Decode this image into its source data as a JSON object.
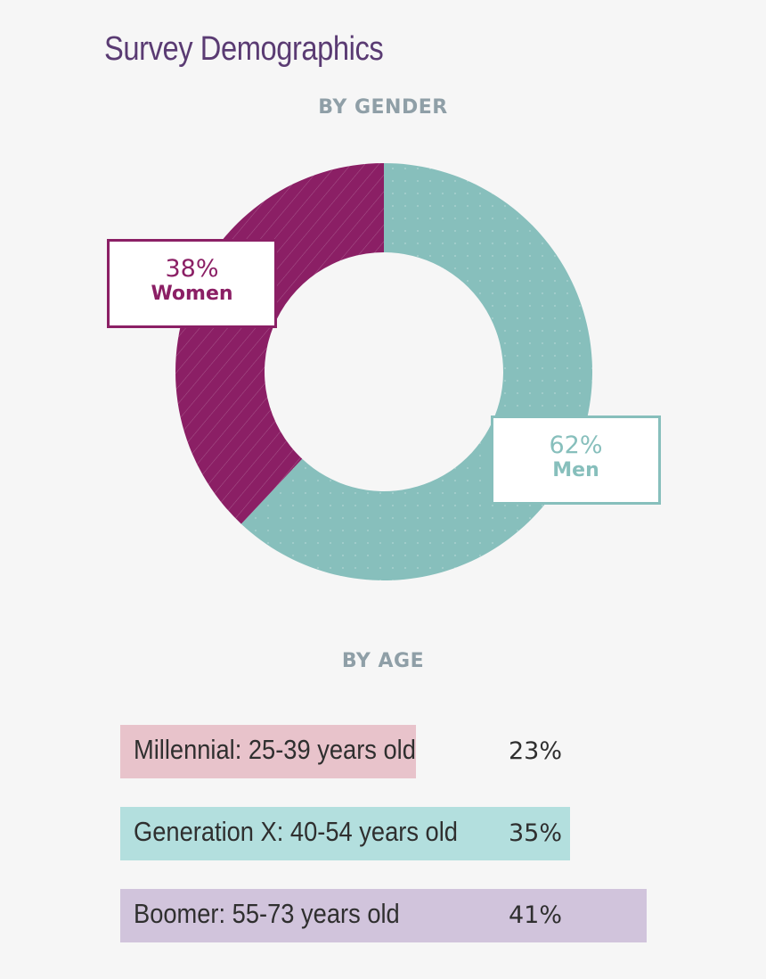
{
  "title": "Survey Demographics",
  "colors": {
    "women": "#8b1f65",
    "men": "#87bfbc",
    "millennial": "#e8c3cb",
    "genx": "#b3dfde",
    "boomer": "#d1c4dc",
    "title": "#5a3b73",
    "section_label": "#8f9fa7"
  },
  "chart_data": [
    {
      "type": "pie",
      "variant": "donut",
      "title": "BY GENDER",
      "slices": [
        {
          "name": "Men",
          "value": 62,
          "label": "62%"
        },
        {
          "name": "Women",
          "value": 38,
          "label": "38%"
        }
      ]
    },
    {
      "type": "bar",
      "orientation": "horizontal",
      "title": "BY AGE",
      "categories": [
        "Millennial: 25-39 years old",
        "Generation X: 40-54 years old",
        "Boomer: 55-73 years old"
      ],
      "values": [
        23,
        35,
        41
      ],
      "labels": [
        "23%",
        "35%",
        "41%"
      ]
    }
  ]
}
